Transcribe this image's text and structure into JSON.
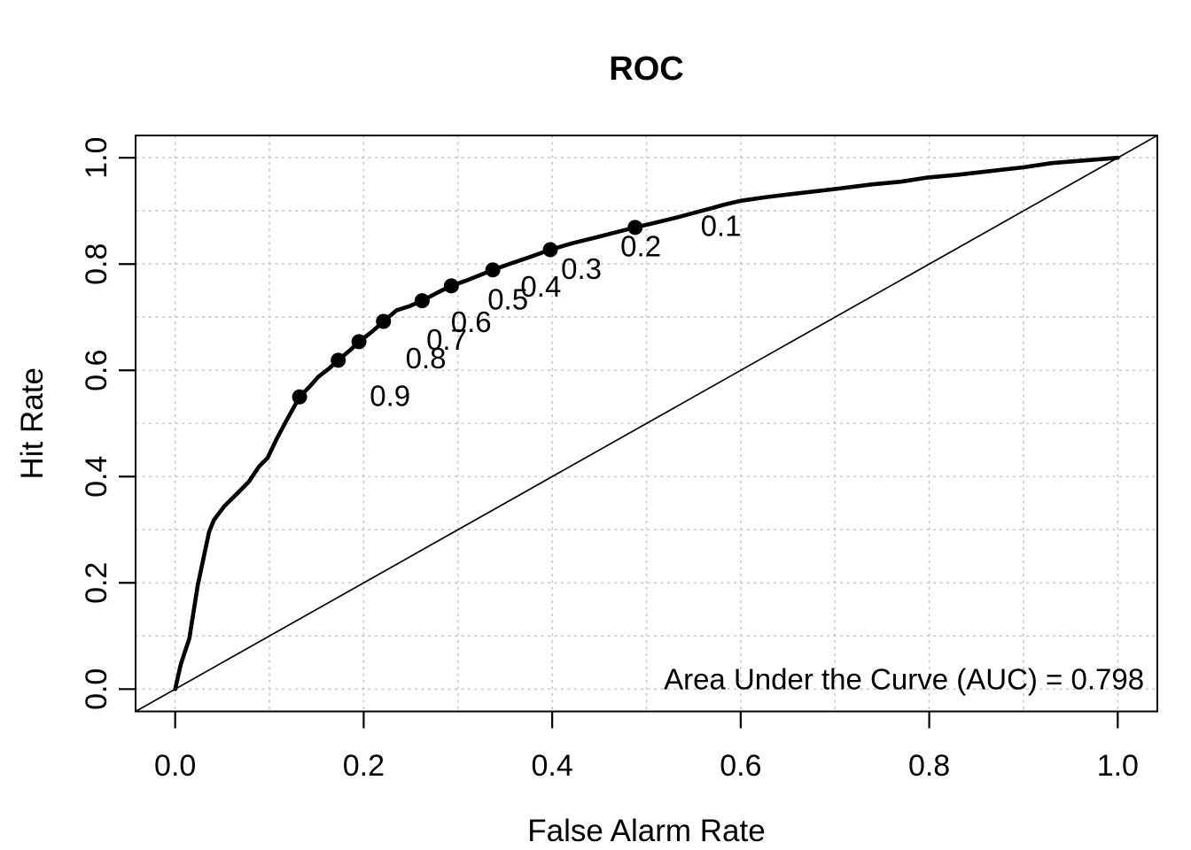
{
  "page": {
    "background_color": "#ffffff",
    "foreground_color": "#000000",
    "grid_color": "#c8c8c8"
  },
  "chart_data": {
    "type": "line",
    "title": "ROC",
    "xlabel": "False Alarm Rate",
    "ylabel": "Hit Rate",
    "xlim": [
      0,
      1
    ],
    "ylim": [
      0,
      1
    ],
    "axis_pad_fraction": 0.042,
    "x_ticks": [
      0,
      0.2,
      0.4,
      0.6,
      0.8,
      1
    ],
    "x_tick_labels": [
      "0.0",
      "0.2",
      "0.4",
      "0.6",
      "0.8",
      "1.0"
    ],
    "y_ticks": [
      0,
      0.2,
      0.4,
      0.6,
      0.8,
      1
    ],
    "y_tick_labels": [
      "0.0",
      "0.2",
      "0.4",
      "0.6",
      "0.8",
      "1.0"
    ],
    "grid": {
      "x_step": 0.1,
      "y_step": 0.1,
      "style": "dashed",
      "color": "#c8c8c8",
      "visible": true
    },
    "legend": "none",
    "auc": 0.798,
    "series": [
      {
        "name": "roc-curve",
        "color": "#000000",
        "points": [
          [
            0.0,
            0.0
          ],
          [
            0.006,
            0.047
          ],
          [
            0.015,
            0.095
          ],
          [
            0.024,
            0.196
          ],
          [
            0.036,
            0.296
          ],
          [
            0.041,
            0.318
          ],
          [
            0.052,
            0.344
          ],
          [
            0.068,
            0.372
          ],
          [
            0.078,
            0.39
          ],
          [
            0.089,
            0.419
          ],
          [
            0.098,
            0.435
          ],
          [
            0.108,
            0.472
          ],
          [
            0.117,
            0.502
          ],
          [
            0.132,
            0.55
          ],
          [
            0.143,
            0.57
          ],
          [
            0.152,
            0.588
          ],
          [
            0.163,
            0.603
          ],
          [
            0.173,
            0.619
          ],
          [
            0.185,
            0.637
          ],
          [
            0.196,
            0.655
          ],
          [
            0.209,
            0.673
          ],
          [
            0.221,
            0.692
          ],
          [
            0.235,
            0.713
          ],
          [
            0.249,
            0.721
          ],
          [
            0.262,
            0.731
          ],
          [
            0.278,
            0.746
          ],
          [
            0.293,
            0.759
          ],
          [
            0.309,
            0.769
          ],
          [
            0.323,
            0.779
          ],
          [
            0.337,
            0.789
          ],
          [
            0.356,
            0.801
          ],
          [
            0.376,
            0.813
          ],
          [
            0.398,
            0.827
          ],
          [
            0.421,
            0.839
          ],
          [
            0.446,
            0.85
          ],
          [
            0.466,
            0.859
          ],
          [
            0.488,
            0.869
          ],
          [
            0.51,
            0.878
          ],
          [
            0.533,
            0.888
          ],
          [
            0.556,
            0.899
          ],
          [
            0.571,
            0.906
          ],
          [
            0.583,
            0.912
          ],
          [
            0.6,
            0.919
          ],
          [
            0.627,
            0.926
          ],
          [
            0.66,
            0.933
          ],
          [
            0.699,
            0.941
          ],
          [
            0.74,
            0.95
          ],
          [
            0.77,
            0.955
          ],
          [
            0.799,
            0.963
          ],
          [
            0.83,
            0.968
          ],
          [
            0.865,
            0.975
          ],
          [
            0.9,
            0.982
          ],
          [
            0.93,
            0.99
          ],
          [
            0.965,
            0.995
          ],
          [
            1.0,
            1.0
          ]
        ]
      },
      {
        "name": "chance-diagonal",
        "color": "#000000",
        "points": [
          [
            -0.042,
            -0.042
          ],
          [
            1.042,
            1.042
          ]
        ]
      }
    ],
    "threshold_points": [
      {
        "label": "0.1",
        "x": 0.488,
        "y": 0.869,
        "label_x": 0.579,
        "label_y": 0.872
      },
      {
        "label": "0.2",
        "x": 0.398,
        "y": 0.827,
        "label_x": 0.494,
        "label_y": 0.834
      },
      {
        "label": "0.3",
        "x": 0.337,
        "y": 0.789,
        "label_x": 0.431,
        "label_y": 0.791
      },
      {
        "label": "0.4",
        "x": 0.293,
        "y": 0.759,
        "label_x": 0.388,
        "label_y": 0.758
      },
      {
        "label": "0.5",
        "x": 0.262,
        "y": 0.731,
        "label_x": 0.353,
        "label_y": 0.734
      },
      {
        "label": "0.6",
        "x": 0.221,
        "y": 0.692,
        "label_x": 0.314,
        "label_y": 0.691
      },
      {
        "label": "0.7",
        "x": 0.195,
        "y": 0.654,
        "label_x": 0.288,
        "label_y": 0.658
      },
      {
        "label": "0.8",
        "x": 0.173,
        "y": 0.619,
        "label_x": 0.266,
        "label_y": 0.623
      },
      {
        "label": "0.9",
        "x": 0.132,
        "y": 0.55,
        "label_x": 0.228,
        "label_y": 0.552
      }
    ],
    "annotation": {
      "text": "Area Under the Curve (AUC) = 0.798",
      "x": 1.028,
      "y": 0.0,
      "anchor": "end"
    }
  }
}
